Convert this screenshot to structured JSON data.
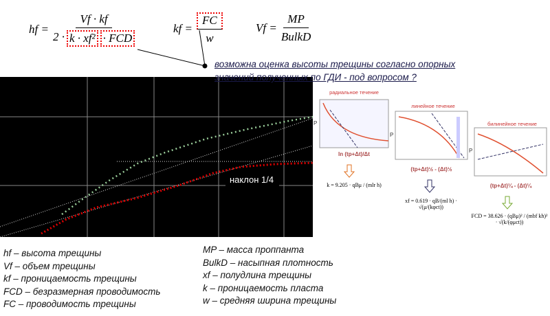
{
  "formulas": [
    {
      "lhs": "hf =",
      "num": "Vf · kf",
      "den": [
        "2 ·",
        "k · xf²",
        "· FCD"
      ]
    },
    {
      "lhs": "kf =",
      "num": "FC",
      "den": [
        "w"
      ]
    },
    {
      "lhs": "Vf =",
      "num": "MP",
      "den": [
        "BulkD"
      ]
    }
  ],
  "annotation": [
    "возможна оценка высоты трещины согласно опорных",
    "значений полученных по ГДИ - под вопросом ?"
  ],
  "plot": {
    "slope_label": "наклон 1/4"
  },
  "diagrams": [
    {
      "title": "радиальное течение",
      "y_label": "P",
      "x_label": "ln (tp+Δt)/Δt",
      "formula": "k = 9.205 · qBμ / (mlr h)"
    },
    {
      "title": "линейное течение",
      "y_label": "P",
      "x_label": "(tp+Δt)½ - (Δt)½",
      "formula": "xf = 0.619 · qB/(ml h) · √(μ/(kφct))"
    },
    {
      "title": "билинейное течение",
      "y_label": "P",
      "x_label": "(tp+Δt)¼ - (Δt)¼",
      "formula": "FCD = 38.626 · (qBμ)² / (mbf kh)² · √(k/(φμct))"
    }
  ],
  "legend_left": [
    "hf – высота трещины",
    "Vf – объем трещины",
    "kf – проницаемость трещины",
    "FCD – безразмерная проводимость",
    "FC – проводимость трещины"
  ],
  "legend_right": [
    "MP – масса проппанта",
    "BulkD – насыпная плотность",
    "xf – полудлина трещины",
    "k – проницаемость пласта",
    "w – средняя ширина трещины"
  ]
}
